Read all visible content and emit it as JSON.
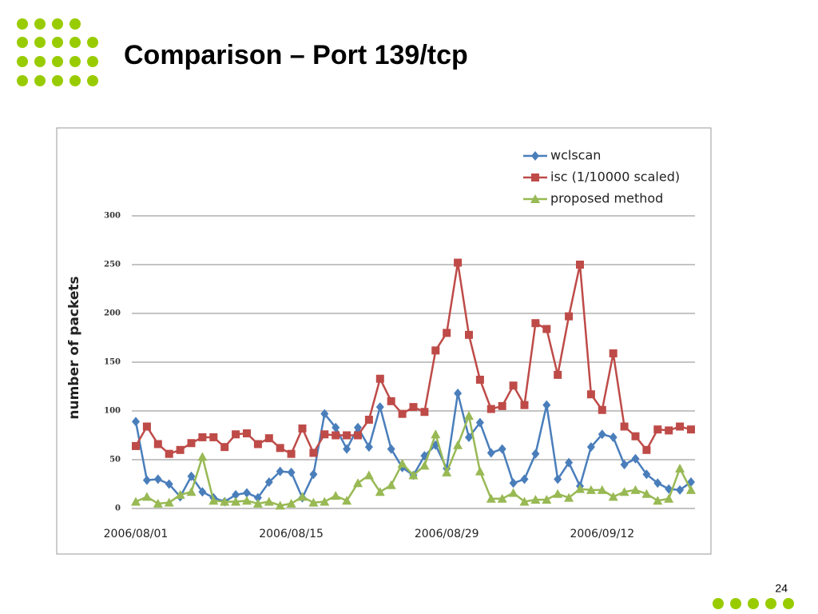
{
  "title": "Comparison – Port 139/tcp",
  "page_number": "24",
  "chart_data": {
    "type": "line",
    "y_label": "number of packets",
    "categories": [
      "2006/08/01",
      null,
      null,
      null,
      null,
      null,
      null,
      null,
      null,
      null,
      null,
      null,
      null,
      null,
      "2006/08/15",
      null,
      null,
      null,
      null,
      null,
      null,
      null,
      null,
      null,
      null,
      null,
      null,
      null,
      "2006/08/29",
      null,
      null,
      null,
      null,
      null,
      null,
      null,
      null,
      null,
      null,
      null,
      null,
      null,
      "2006/09/12",
      null,
      null,
      null,
      null,
      null,
      null,
      null,
      null
    ],
    "series": [
      {
        "name": "wclscan",
        "color": "#4a7ebb",
        "marker": "diamond",
        "values": [
          89,
          29,
          30,
          25,
          12,
          33,
          17,
          11,
          7,
          14,
          16,
          11,
          27,
          38,
          37,
          11,
          35,
          97,
          83,
          61,
          83,
          63,
          104,
          61,
          42,
          34,
          54,
          65,
          41,
          118,
          73,
          88,
          57,
          61,
          26,
          30,
          56,
          106,
          30,
          47,
          23,
          63,
          76,
          73,
          45,
          51,
          35,
          26,
          20,
          19,
          27
        ]
      },
      {
        "name": "isc (1/10000 scaled)",
        "color": "#be4b48",
        "marker": "square",
        "values": [
          64,
          84,
          66,
          56,
          60,
          67,
          73,
          73,
          63,
          76,
          77,
          66,
          72,
          62,
          56,
          82,
          57,
          76,
          75,
          75,
          75,
          91,
          133,
          110,
          97,
          104,
          99,
          162,
          180,
          252,
          178,
          132,
          102,
          105,
          126,
          106,
          190,
          184,
          137,
          197,
          250,
          117,
          101,
          159,
          84,
          74,
          60,
          81,
          80,
          84,
          81
        ]
      },
      {
        "name": "proposed method",
        "color": "#98b954",
        "marker": "triangle",
        "values": [
          7,
          12,
          5,
          6,
          14,
          17,
          53,
          8,
          7,
          7,
          8,
          5,
          7,
          3,
          5,
          12,
          6,
          7,
          13,
          8,
          26,
          34,
          17,
          24,
          46,
          34,
          44,
          76,
          37,
          65,
          95,
          38,
          10,
          10,
          16,
          7,
          9,
          9,
          15,
          11,
          20,
          19,
          19,
          12,
          17,
          19,
          15,
          8,
          10,
          41,
          19
        ]
      }
    ],
    "ylim": [
      0,
      300
    ],
    "yticks": [
      0,
      50,
      100,
      150,
      200,
      250,
      300
    ],
    "grid": true,
    "legend": "top-right"
  }
}
